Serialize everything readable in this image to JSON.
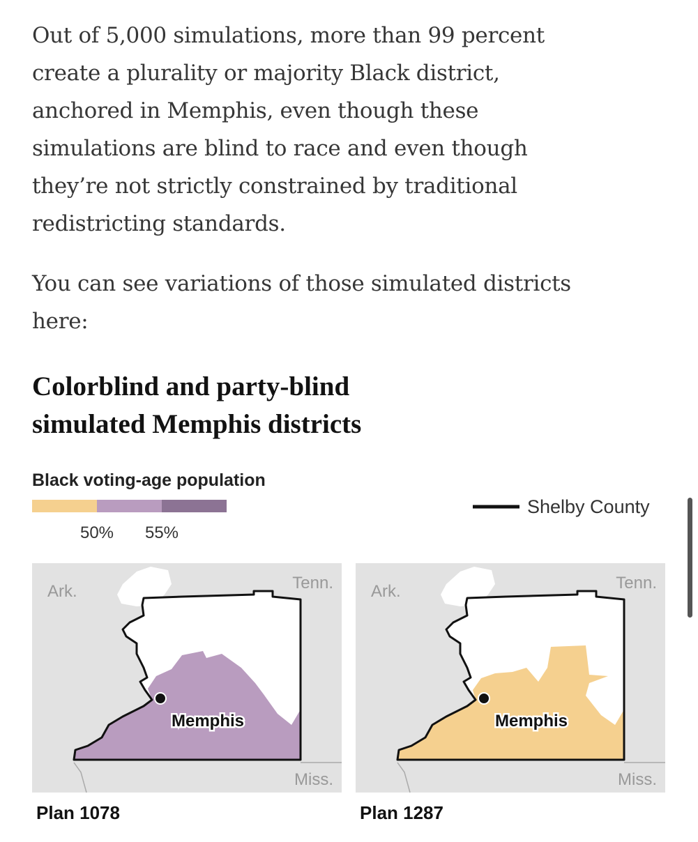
{
  "article": {
    "paragraphs": [
      {
        "lines": [
          "Out of 5,000 simulations, more than 99 percent",
          "create a plurality or majority Black district,",
          "anchored in Memphis, even though these",
          "simulations are blind to race and even though",
          "they’re not strictly constrained by traditional",
          "redistricting standards."
        ]
      },
      {
        "lines": [
          "You can see variations of those simulated districts",
          "here:"
        ]
      }
    ],
    "graphic": {
      "title_lines": [
        "Colorblind and party-blind",
        "simulated Memphis districts"
      ],
      "legend": {
        "title": "Black voting-age population",
        "colors": [
          "#f5d08f",
          "#b99cbf",
          "#8c7394"
        ],
        "ticks": [
          "50%",
          "55%"
        ],
        "key": "Shelby County"
      },
      "maps": [
        {
          "caption": "Plan 1078",
          "labels": {
            "west": "Ark.",
            "east": "Tenn.",
            "south": "Miss.",
            "city": "Memphis"
          }
        },
        {
          "caption": "Plan 1287",
          "labels": {
            "west": "Ark.",
            "east": "Tenn.",
            "south": "Miss.",
            "city": "Memphis"
          }
        }
      ]
    }
  }
}
